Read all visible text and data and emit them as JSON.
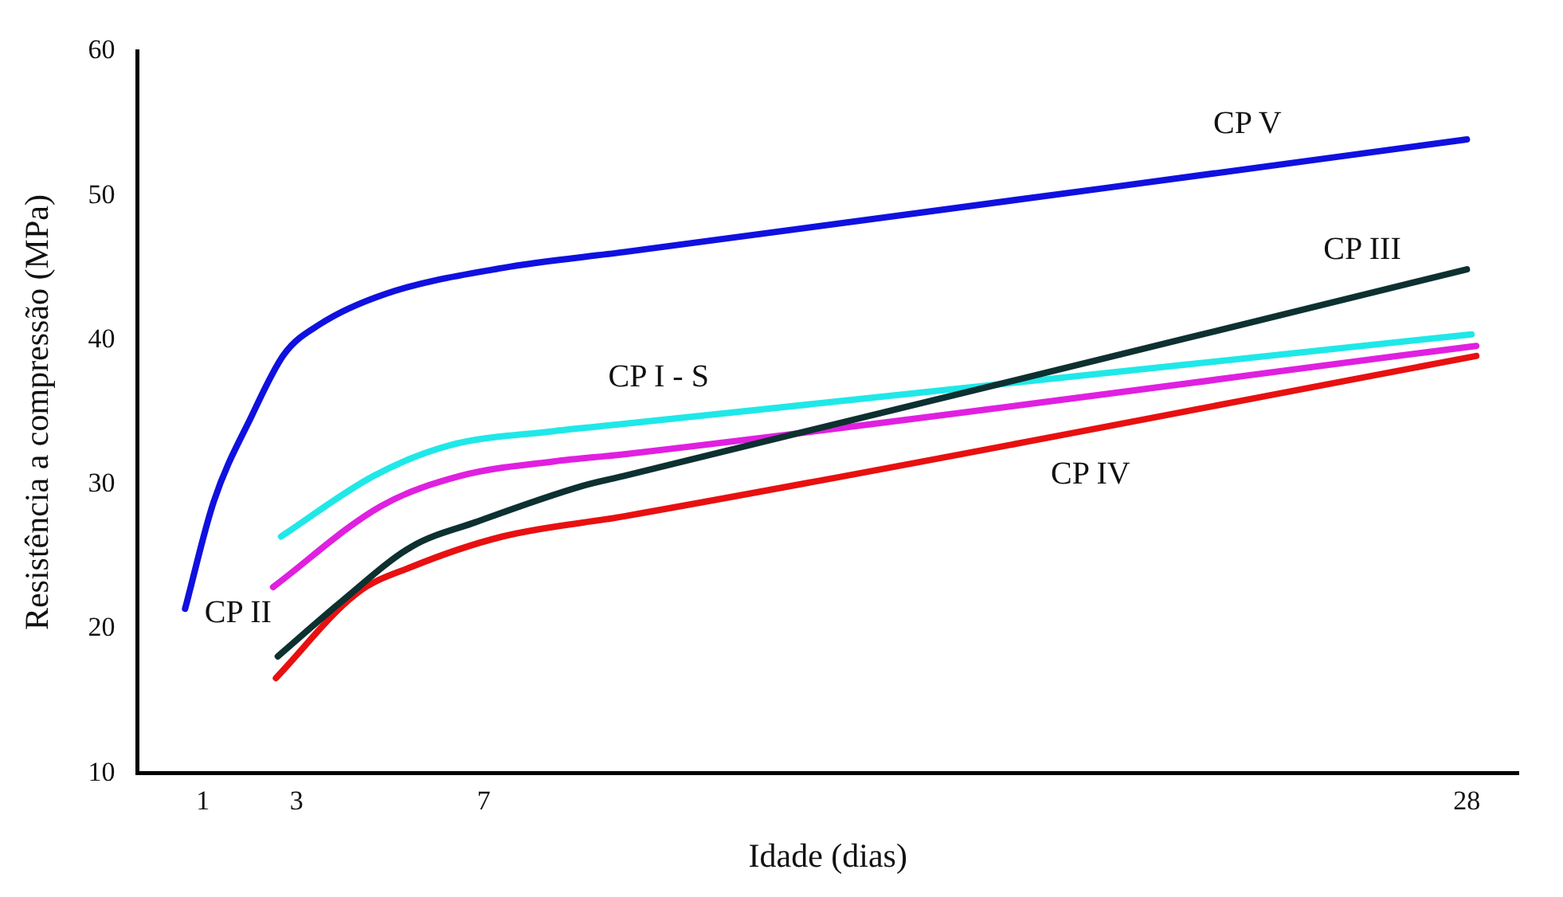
{
  "chart_data": {
    "type": "line",
    "xlabel": "Idade (dias)",
    "ylabel": "Resistência a compressão (MPa)",
    "xlim": [
      -0.4,
      29.1
    ],
    "xticks": [
      1,
      3,
      7,
      28
    ],
    "ylim": [
      10,
      60
    ],
    "yticks": [
      10,
      20,
      30,
      40,
      50,
      60
    ],
    "grid": false,
    "legend": false,
    "marker": "none",
    "line_style": "solid",
    "series": [
      {
        "name": "CP V",
        "color": "#1010e0",
        "x": [
          0.62,
          1.23,
          2.05,
          2.73,
          3.5,
          4.9,
          7.4,
          10.0,
          20.2,
          28
        ],
        "values": [
          21.4,
          28.8,
          34.8,
          39.0,
          41.1,
          43.2,
          45.0,
          46.1,
          50.5,
          53.9
        ]
      },
      {
        "name": "CP III",
        "color": "#0d3030",
        "x": [
          2.6,
          3.96,
          5.46,
          6.83,
          9.1,
          10.0,
          28
        ],
        "values": [
          18.1,
          21.9,
          25.7,
          27.4,
          29.9,
          30.6,
          44.9
        ]
      },
      {
        "name": "CP I - S",
        "color": "#20e8e8",
        "x": [
          2.67,
          4.65,
          6.25,
          8.5,
          10.0,
          28.1
        ],
        "values": [
          26.4,
          30.6,
          32.7,
          33.7,
          34.2,
          40.4
        ]
      },
      {
        "name": "CP II",
        "color": "#e020e0",
        "x": [
          2.5,
          4.8,
          6.5,
          8.5,
          10.0,
          28.2
        ],
        "values": [
          22.9,
          28.5,
          30.6,
          31.6,
          32.1,
          39.6
        ]
      },
      {
        "name": "CP IV",
        "color": "#e81010",
        "x": [
          2.56,
          4.3,
          5.46,
          7.4,
          10.0,
          28.2
        ],
        "values": [
          16.6,
          22.5,
          24.3,
          26.4,
          27.8,
          38.9
        ]
      }
    ]
  }
}
